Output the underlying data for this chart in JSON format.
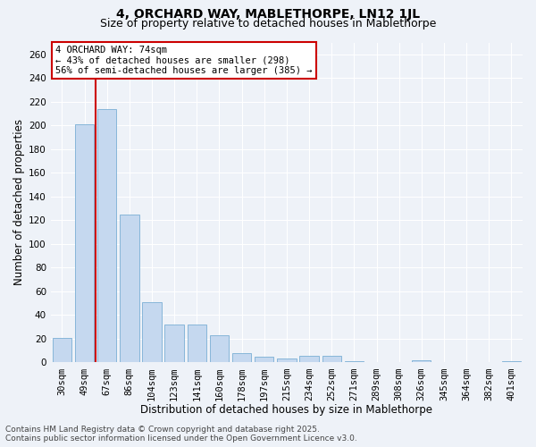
{
  "title_line1": "4, ORCHARD WAY, MABLETHORPE, LN12 1JL",
  "title_line2": "Size of property relative to detached houses in Mablethorpe",
  "xlabel": "Distribution of detached houses by size in Mablethorpe",
  "ylabel": "Number of detached properties",
  "bar_color": "#c5d8ef",
  "bar_edge_color": "#7aafd4",
  "categories": [
    "30sqm",
    "49sqm",
    "67sqm",
    "86sqm",
    "104sqm",
    "123sqm",
    "141sqm",
    "160sqm",
    "178sqm",
    "197sqm",
    "215sqm",
    "234sqm",
    "252sqm",
    "271sqm",
    "289sqm",
    "308sqm",
    "326sqm",
    "345sqm",
    "364sqm",
    "382sqm",
    "401sqm"
  ],
  "values": [
    21,
    201,
    214,
    125,
    51,
    32,
    32,
    23,
    8,
    5,
    3,
    6,
    6,
    1,
    0,
    0,
    2,
    0,
    0,
    0,
    1
  ],
  "ylim": [
    0,
    270
  ],
  "yticks": [
    0,
    20,
    40,
    60,
    80,
    100,
    120,
    140,
    160,
    180,
    200,
    220,
    240,
    260
  ],
  "vline_x": 1.5,
  "vline_color": "#cc0000",
  "annotation_text": "4 ORCHARD WAY: 74sqm\n← 43% of detached houses are smaller (298)\n56% of semi-detached houses are larger (385) →",
  "annotation_box_color": "#ffffff",
  "annotation_box_edge_color": "#cc0000",
  "footer_line1": "Contains HM Land Registry data © Crown copyright and database right 2025.",
  "footer_line2": "Contains public sector information licensed under the Open Government Licence v3.0.",
  "background_color": "#eef2f8",
  "grid_color": "#ffffff",
  "title_fontsize": 10,
  "subtitle_fontsize": 9,
  "axis_label_fontsize": 8.5,
  "tick_fontsize": 7.5,
  "annotation_fontsize": 7.5,
  "footer_fontsize": 6.5
}
